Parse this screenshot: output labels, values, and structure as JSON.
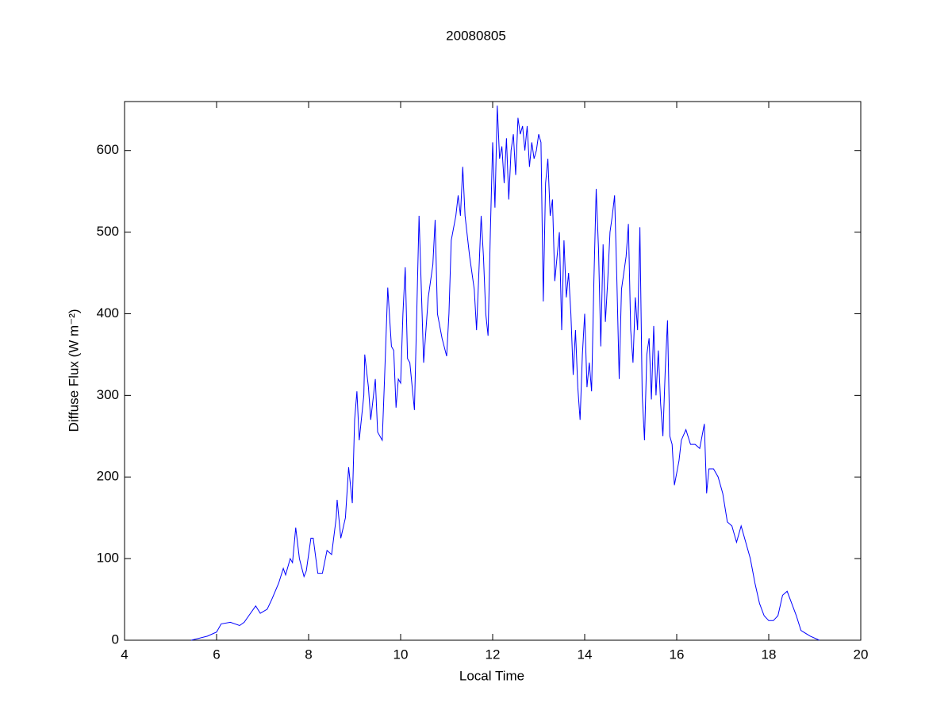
{
  "chart_data": {
    "type": "line",
    "title": "20080805",
    "x_label": "Local Time",
    "y_label": "Diffuse Flux (W m⁻²)",
    "xlim": [
      4,
      20
    ],
    "ylim": [
      0,
      660
    ],
    "xticks": [
      4,
      6,
      8,
      10,
      12,
      14,
      16,
      18,
      20
    ],
    "yticks": [
      0,
      100,
      200,
      300,
      400,
      500,
      600
    ],
    "color": "#0000ff",
    "x": [
      5.45,
      5.8,
      6.0,
      6.1,
      6.3,
      6.5,
      6.6,
      6.7,
      6.85,
      6.95,
      7.1,
      7.2,
      7.35,
      7.45,
      7.5,
      7.6,
      7.65,
      7.72,
      7.8,
      7.9,
      7.95,
      8.05,
      8.1,
      8.2,
      8.3,
      8.4,
      8.5,
      8.6,
      8.62,
      8.7,
      8.8,
      8.87,
      8.95,
      9.0,
      9.05,
      9.1,
      9.2,
      9.22,
      9.3,
      9.35,
      9.45,
      9.5,
      9.6,
      9.65,
      9.72,
      9.8,
      9.85,
      9.9,
      9.95,
      10.0,
      10.05,
      10.1,
      10.15,
      10.2,
      10.3,
      10.35,
      10.4,
      10.5,
      10.6,
      10.7,
      10.75,
      10.8,
      10.9,
      11.0,
      11.05,
      11.1,
      11.2,
      11.25,
      11.3,
      11.35,
      11.4,
      11.5,
      11.6,
      11.65,
      11.75,
      11.8,
      11.85,
      11.9,
      11.95,
      12.0,
      12.05,
      12.1,
      12.15,
      12.2,
      12.25,
      12.3,
      12.35,
      12.4,
      12.45,
      12.5,
      12.55,
      12.6,
      12.65,
      12.7,
      12.75,
      12.8,
      12.85,
      12.9,
      12.95,
      13.0,
      13.05,
      13.1,
      13.15,
      13.2,
      13.25,
      13.3,
      13.35,
      13.4,
      13.45,
      13.5,
      13.55,
      13.6,
      13.65,
      13.7,
      13.75,
      13.8,
      13.85,
      13.9,
      13.95,
      14.0,
      14.05,
      14.1,
      14.15,
      14.2,
      14.25,
      14.3,
      14.35,
      14.4,
      14.45,
      14.5,
      14.55,
      14.6,
      14.65,
      14.7,
      14.75,
      14.8,
      14.85,
      14.9,
      14.95,
      15.0,
      15.05,
      15.1,
      15.15,
      15.2,
      15.25,
      15.3,
      15.35,
      15.4,
      15.45,
      15.5,
      15.55,
      15.6,
      15.65,
      15.7,
      15.75,
      15.8,
      15.85,
      15.9,
      15.95,
      16.05,
      16.1,
      16.2,
      16.3,
      16.4,
      16.5,
      16.6,
      16.65,
      16.7,
      16.8,
      16.9,
      17.0,
      17.1,
      17.2,
      17.3,
      17.4,
      17.5,
      17.6,
      17.7,
      17.8,
      17.9,
      18.0,
      18.1,
      18.2,
      18.3,
      18.4,
      18.5,
      18.6,
      18.7,
      18.9,
      19.1
    ],
    "values": [
      0,
      5,
      10,
      20,
      22,
      18,
      22,
      30,
      42,
      33,
      38,
      50,
      70,
      88,
      80,
      100,
      95,
      138,
      100,
      78,
      85,
      125,
      125,
      82,
      82,
      110,
      105,
      150,
      172,
      125,
      150,
      212,
      168,
      270,
      305,
      245,
      300,
      350,
      310,
      270,
      320,
      255,
      245,
      320,
      432,
      360,
      355,
      285,
      320,
      315,
      400,
      457,
      345,
      340,
      282,
      400,
      520,
      340,
      420,
      460,
      515,
      400,
      370,
      348,
      400,
      490,
      520,
      545,
      520,
      580,
      520,
      470,
      430,
      380,
      520,
      470,
      400,
      373,
      500,
      610,
      530,
      655,
      590,
      605,
      560,
      615,
      540,
      600,
      620,
      570,
      640,
      620,
      630,
      600,
      630,
      580,
      610,
      590,
      600,
      620,
      610,
      415,
      560,
      590,
      520,
      540,
      440,
      470,
      500,
      380,
      490,
      420,
      450,
      400,
      325,
      380,
      310,
      270,
      350,
      400,
      310,
      340,
      305,
      440,
      553,
      480,
      360,
      485,
      390,
      440,
      500,
      520,
      545,
      440,
      320,
      430,
      450,
      470,
      510,
      380,
      340,
      420,
      380,
      506,
      300,
      245,
      350,
      370,
      295,
      385,
      300,
      355,
      290,
      250,
      330,
      392,
      250,
      240,
      190,
      220,
      245,
      258,
      240,
      240,
      235,
      265,
      180,
      210,
      210,
      200,
      180,
      145,
      140,
      120,
      140,
      120,
      100,
      70,
      45,
      30,
      24,
      24,
      30,
      55,
      60,
      45,
      30,
      12,
      5,
      0
    ]
  }
}
